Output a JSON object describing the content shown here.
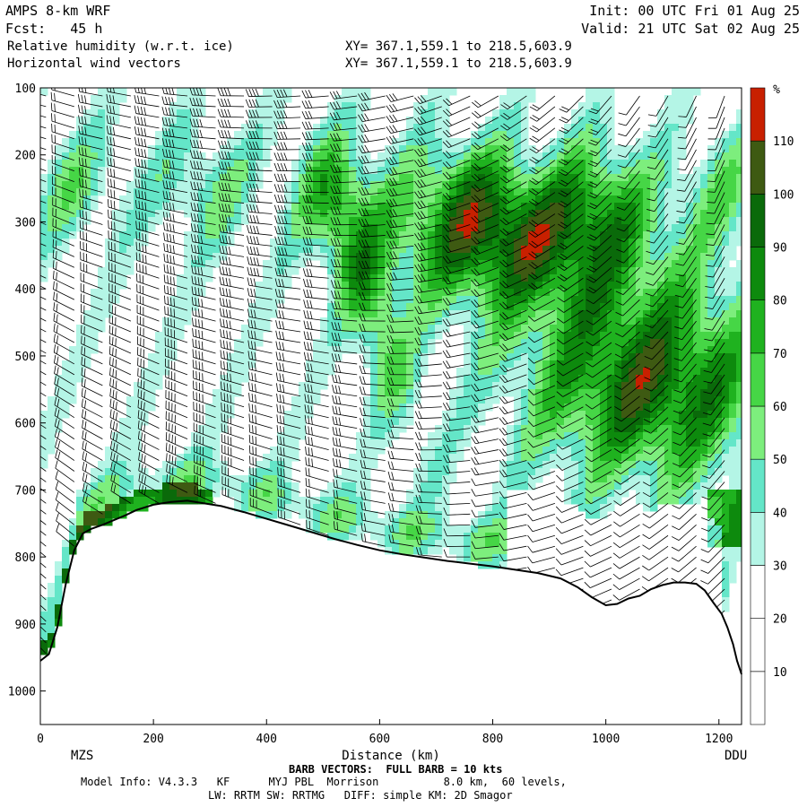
{
  "header": {
    "model": "AMPS 8-km WRF",
    "init": "Init: 00 UTC Fri 01 Aug 25",
    "fcst": "Fcst:   45 h",
    "valid": "Valid: 21 UTC Sat 02 Aug 25",
    "field1": "Relative humidity (w.r.t. ice)",
    "field2": "Horizontal wind vectors",
    "xy1": "XY= 367.1,559.1 to 218.5,603.9",
    "xy2": "XY= 367.1,559.1 to 218.5,603.9"
  },
  "footer": {
    "barb_note": "BARB VECTORS:  FULL BARB = 10 kts",
    "model_info": "Model Info: V4.3.3   KF      MYJ PBL  Morrison          8.0 km,  60 levels,",
    "physics": "LW: RRTM SW: RRTMG   DIFF: simple KM: 2D Smagor"
  },
  "chart_data": {
    "type": "heatmap",
    "title": "Relative humidity (w.r.t. ice)",
    "xlabel": "Distance (km)",
    "ylabel": "",
    "xlim": [
      0,
      1240
    ],
    "ylim": [
      100,
      1050
    ],
    "y_inverted": true,
    "x_ticks": [
      0,
      200,
      400,
      600,
      800,
      1000,
      1200
    ],
    "y_ticks": [
      100,
      200,
      300,
      400,
      500,
      600,
      700,
      800,
      900,
      1000
    ],
    "endpoints": {
      "left": "MZS",
      "right": "DDU"
    },
    "colorbar": {
      "unit": "%",
      "levels": [
        10,
        20,
        30,
        40,
        50,
        60,
        70,
        80,
        90,
        100,
        110
      ],
      "colors": [
        "#ffffff",
        "#ffffff",
        "#ffffff",
        "#b4f5e6",
        "#64e6c8",
        "#7dee7d",
        "#46d646",
        "#1fb21f",
        "#0d8a0d",
        "#0a6a0a",
        "#3e5a12",
        "#c82000"
      ]
    },
    "terrain_profile": {
      "x": [
        0,
        15,
        30,
        45,
        60,
        75,
        90,
        110,
        130,
        150,
        170,
        200,
        230,
        260,
        290,
        320,
        360,
        400,
        440,
        480,
        520,
        560,
        600,
        640,
        680,
        720,
        760,
        800,
        840,
        880,
        920,
        950,
        975,
        1000,
        1020,
        1040,
        1060,
        1080,
        1100,
        1120,
        1140,
        1160,
        1175,
        1190,
        1205,
        1215,
        1225,
        1232,
        1240
      ],
      "pressure": [
        955,
        945,
        905,
        840,
        790,
        765,
        758,
        752,
        745,
        738,
        730,
        722,
        718,
        716,
        720,
        724,
        733,
        743,
        753,
        763,
        773,
        782,
        790,
        796,
        801,
        806,
        810,
        814,
        819,
        824,
        832,
        845,
        860,
        872,
        870,
        862,
        858,
        848,
        842,
        838,
        838,
        840,
        850,
        868,
        885,
        905,
        930,
        955,
        975
      ]
    },
    "wind_barbs": {
      "note": "full barb = 10 kts",
      "columns": [
        {
          "x": 10,
          "dir": 285,
          "speed": 20,
          "top": 100
        },
        {
          "x": 60,
          "dir": 285,
          "speed": 25,
          "top": 100
        },
        {
          "x": 110,
          "dir": 280,
          "speed": 30,
          "top": 100
        },
        {
          "x": 160,
          "dir": 280,
          "speed": 35,
          "top": 100
        },
        {
          "x": 210,
          "dir": 278,
          "speed": 40,
          "top": 100
        },
        {
          "x": 260,
          "dir": 275,
          "speed": 45,
          "top": 100
        },
        {
          "x": 310,
          "dir": 272,
          "speed": 45,
          "top": 100
        },
        {
          "x": 360,
          "dir": 270,
          "speed": 45,
          "top": 100
        },
        {
          "x": 410,
          "dir": 268,
          "speed": 40,
          "top": 100
        },
        {
          "x": 460,
          "dir": 266,
          "speed": 40,
          "top": 100
        },
        {
          "x": 510,
          "dir": 265,
          "speed": 35,
          "top": 100
        },
        {
          "x": 560,
          "dir": 262,
          "speed": 35,
          "top": 100
        },
        {
          "x": 610,
          "dir": 258,
          "speed": 30,
          "top": 100
        },
        {
          "x": 660,
          "dir": 255,
          "speed": 30,
          "top": 100
        },
        {
          "x": 710,
          "dir": 250,
          "speed": 30,
          "top": 100
        },
        {
          "x": 760,
          "dir": 245,
          "speed": 25,
          "top": 100
        },
        {
          "x": 810,
          "dir": 240,
          "speed": 25,
          "top": 100
        },
        {
          "x": 860,
          "dir": 235,
          "speed": 25,
          "top": 100
        },
        {
          "x": 910,
          "dir": 230,
          "speed": 20,
          "top": 100
        },
        {
          "x": 960,
          "dir": 225,
          "speed": 20,
          "top": 100
        },
        {
          "x": 1010,
          "dir": 220,
          "speed": 20,
          "top": 100
        },
        {
          "x": 1060,
          "dir": 215,
          "speed": 15,
          "top": 100
        },
        {
          "x": 1110,
          "dir": 210,
          "speed": 15,
          "top": 100
        },
        {
          "x": 1160,
          "dir": 205,
          "speed": 15,
          "top": 100
        },
        {
          "x": 1210,
          "dir": 200,
          "speed": 10,
          "top": 100
        }
      ]
    }
  }
}
